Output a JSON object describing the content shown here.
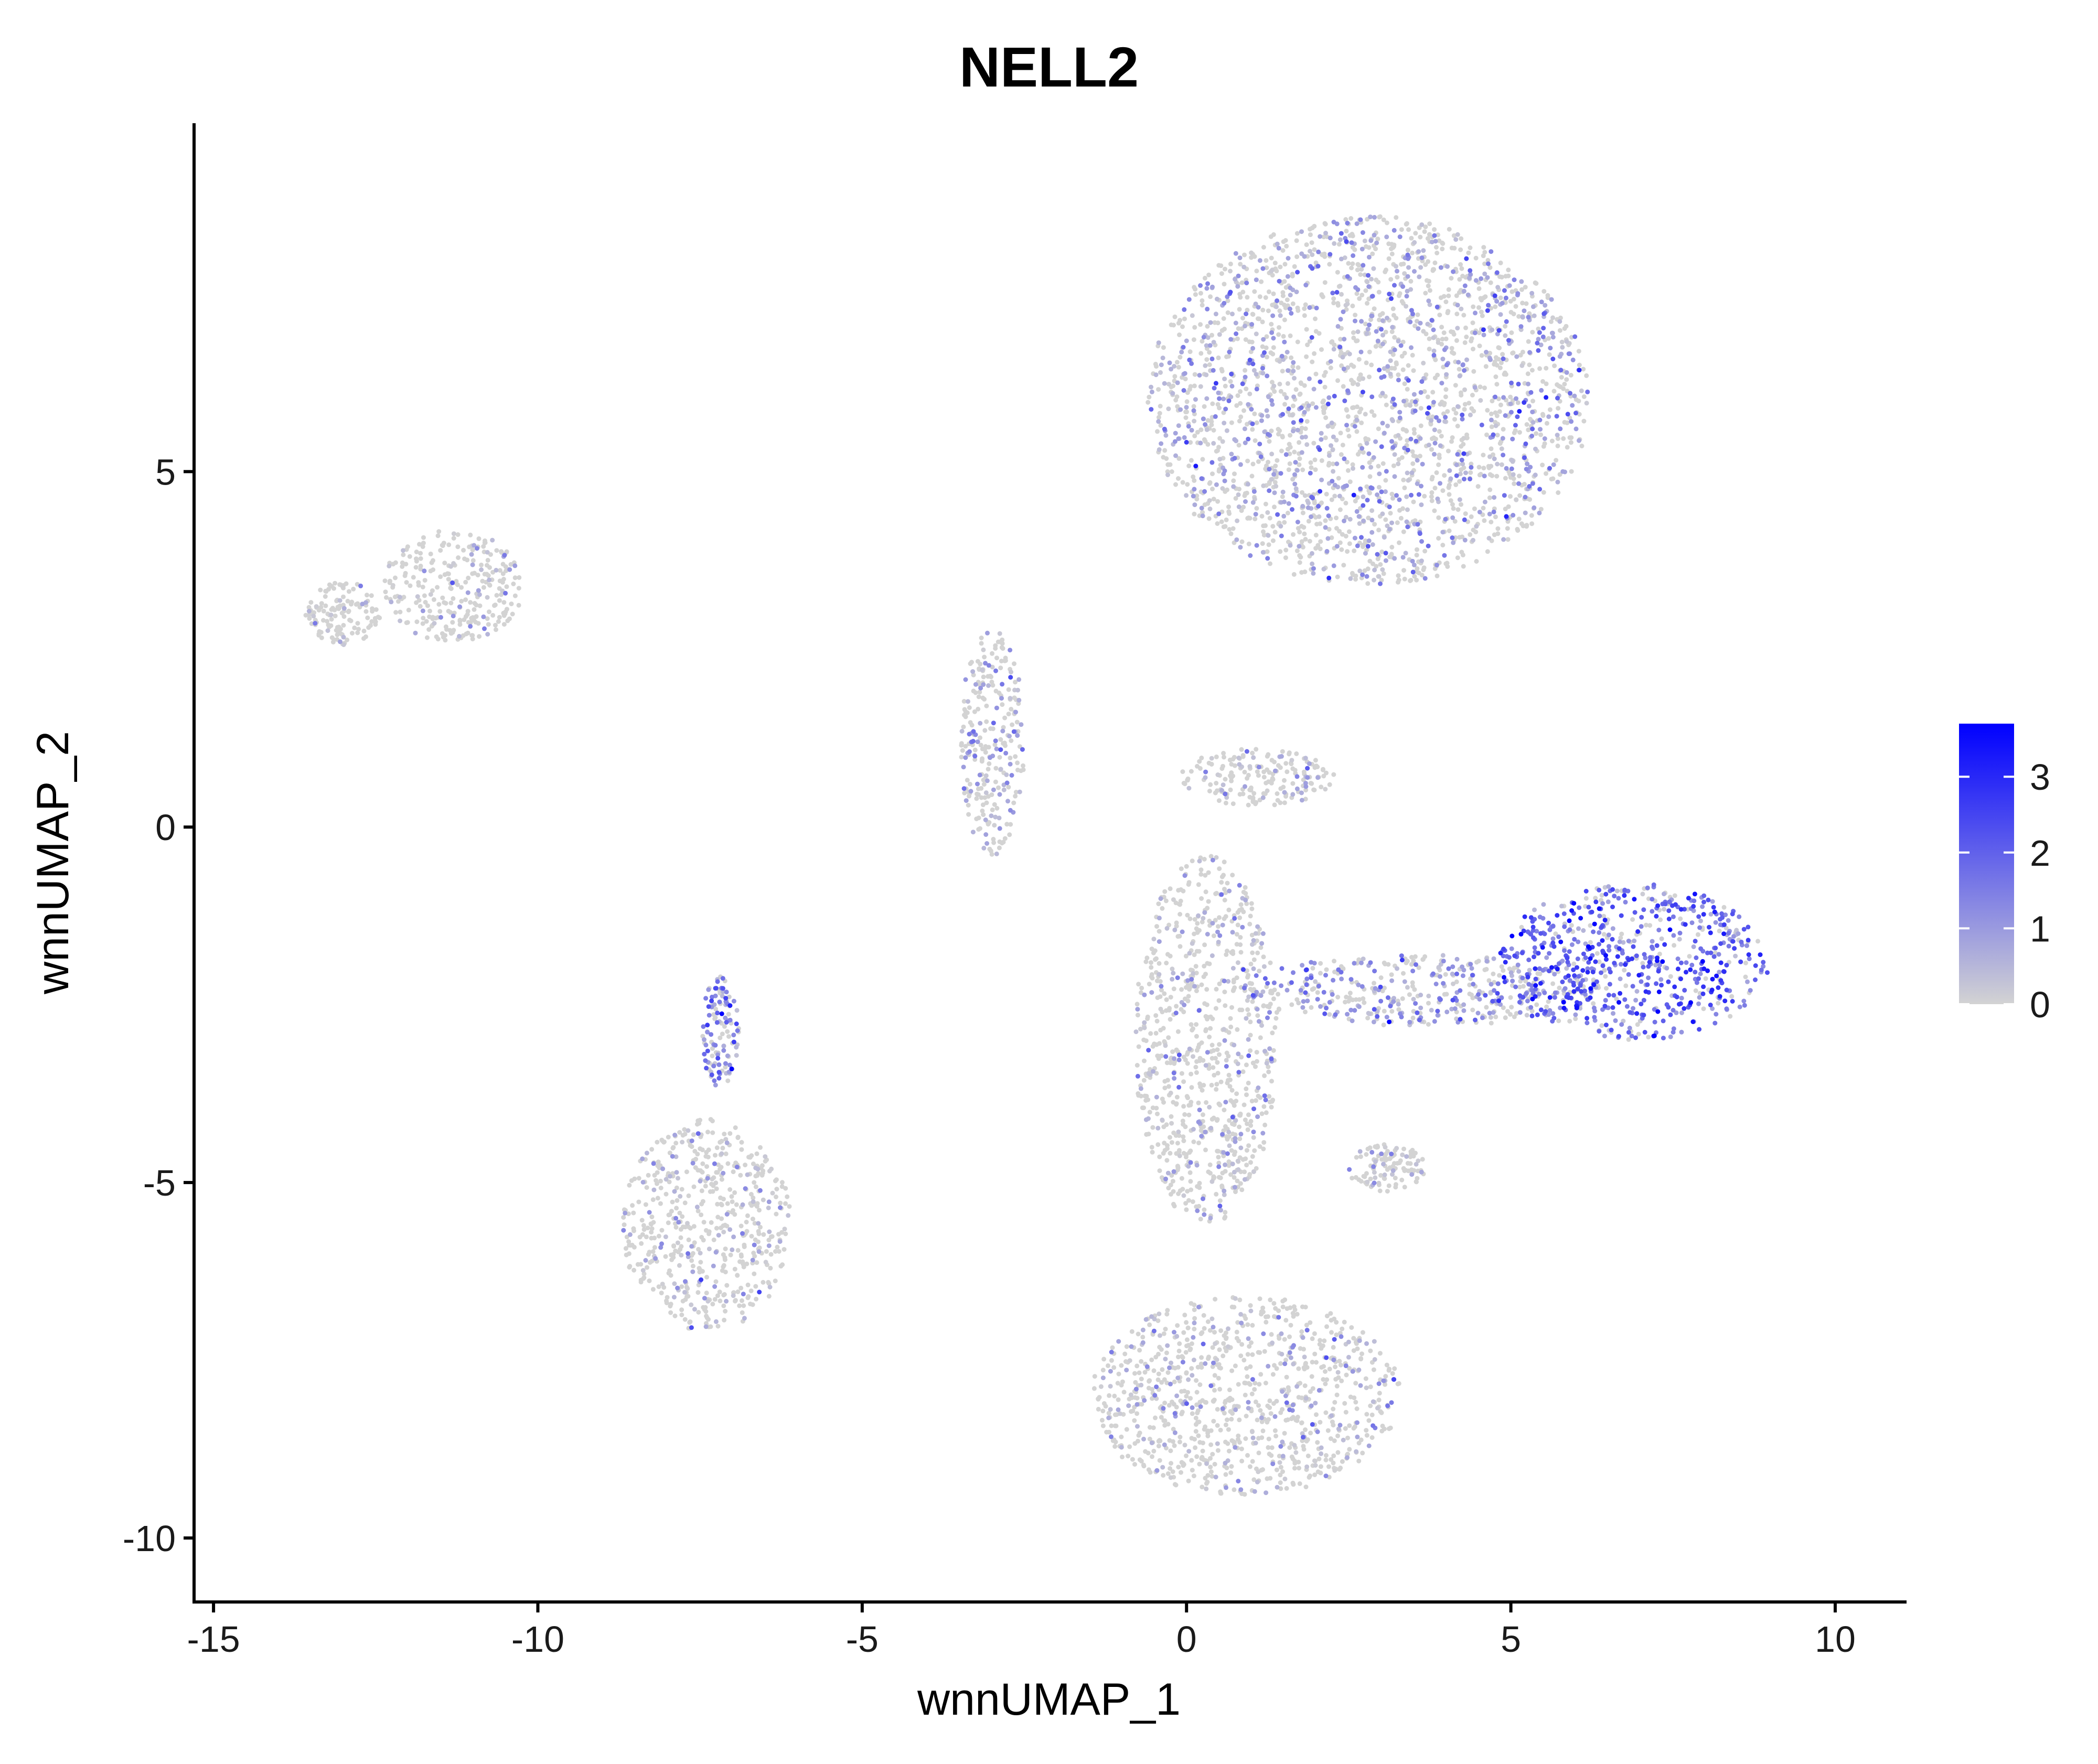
{
  "chart_data": {
    "type": "scatter",
    "title": "NELL2",
    "xlabel": "wnnUMAP_1",
    "ylabel": "wnnUMAP_2",
    "xlim": [
      -15.3,
      11.1
    ],
    "ylim": [
      -10.9,
      9.9
    ],
    "xticks": [
      -15,
      -10,
      -5,
      0,
      5,
      10
    ],
    "yticks": [
      -10,
      -5,
      0,
      5
    ],
    "xtick_labels": [
      "-15",
      "-10",
      "-5",
      "0",
      "5",
      "10"
    ],
    "ytick_labels": [
      "-10",
      "-5",
      "0",
      "5"
    ],
    "grid": false,
    "color_scale": {
      "low": "#d3d3d3",
      "high": "#0000ff",
      "min": 0,
      "max": 3.7,
      "ticks": [
        0,
        1,
        2,
        3
      ],
      "tick_labels": [
        "0",
        "1",
        "2",
        "3"
      ],
      "legend_position": "right"
    },
    "clusters": [
      {
        "cx": 2.8,
        "cy": 6.0,
        "rx": 3.4,
        "ry": 2.6,
        "expression": 0.55
      },
      {
        "cx": 6.9,
        "cy": -1.9,
        "rx": 2.1,
        "ry": 1.1,
        "expression": 1.9
      },
      {
        "cx": 0.9,
        "cy": -8.0,
        "rx": 2.4,
        "ry": 1.4,
        "expression": 0.1
      },
      {
        "cx": -7.4,
        "cy": -5.6,
        "rx": 1.3,
        "ry": 1.5,
        "expression": 0.0
      },
      {
        "cx": -11.3,
        "cy": 3.4,
        "rx": 1.1,
        "ry": 0.8,
        "expression": 0.02
      },
      {
        "cx": -13.0,
        "cy": 3.0,
        "rx": 0.6,
        "ry": 0.45,
        "expression": 0.0
      },
      {
        "cx": 1.1,
        "cy": 0.7,
        "rx": 1.2,
        "ry": 0.4,
        "expression": 0.05
      },
      {
        "cx": 0.3,
        "cy": -3.0,
        "rx": 1.1,
        "ry": 2.6,
        "expression": 0.2
      },
      {
        "cx": -3.0,
        "cy": 1.2,
        "rx": 0.5,
        "ry": 1.6,
        "expression": 0.4
      },
      {
        "cx": 3.6,
        "cy": -2.3,
        "rx": 2.8,
        "ry": 0.5,
        "expression": 0.9
      },
      {
        "cx": 3.1,
        "cy": -4.8,
        "rx": 0.6,
        "ry": 0.35,
        "expression": 0.05
      },
      {
        "cx": -7.2,
        "cy": -2.9,
        "rx": 0.3,
        "ry": 0.8,
        "expression": 1.2
      }
    ]
  }
}
